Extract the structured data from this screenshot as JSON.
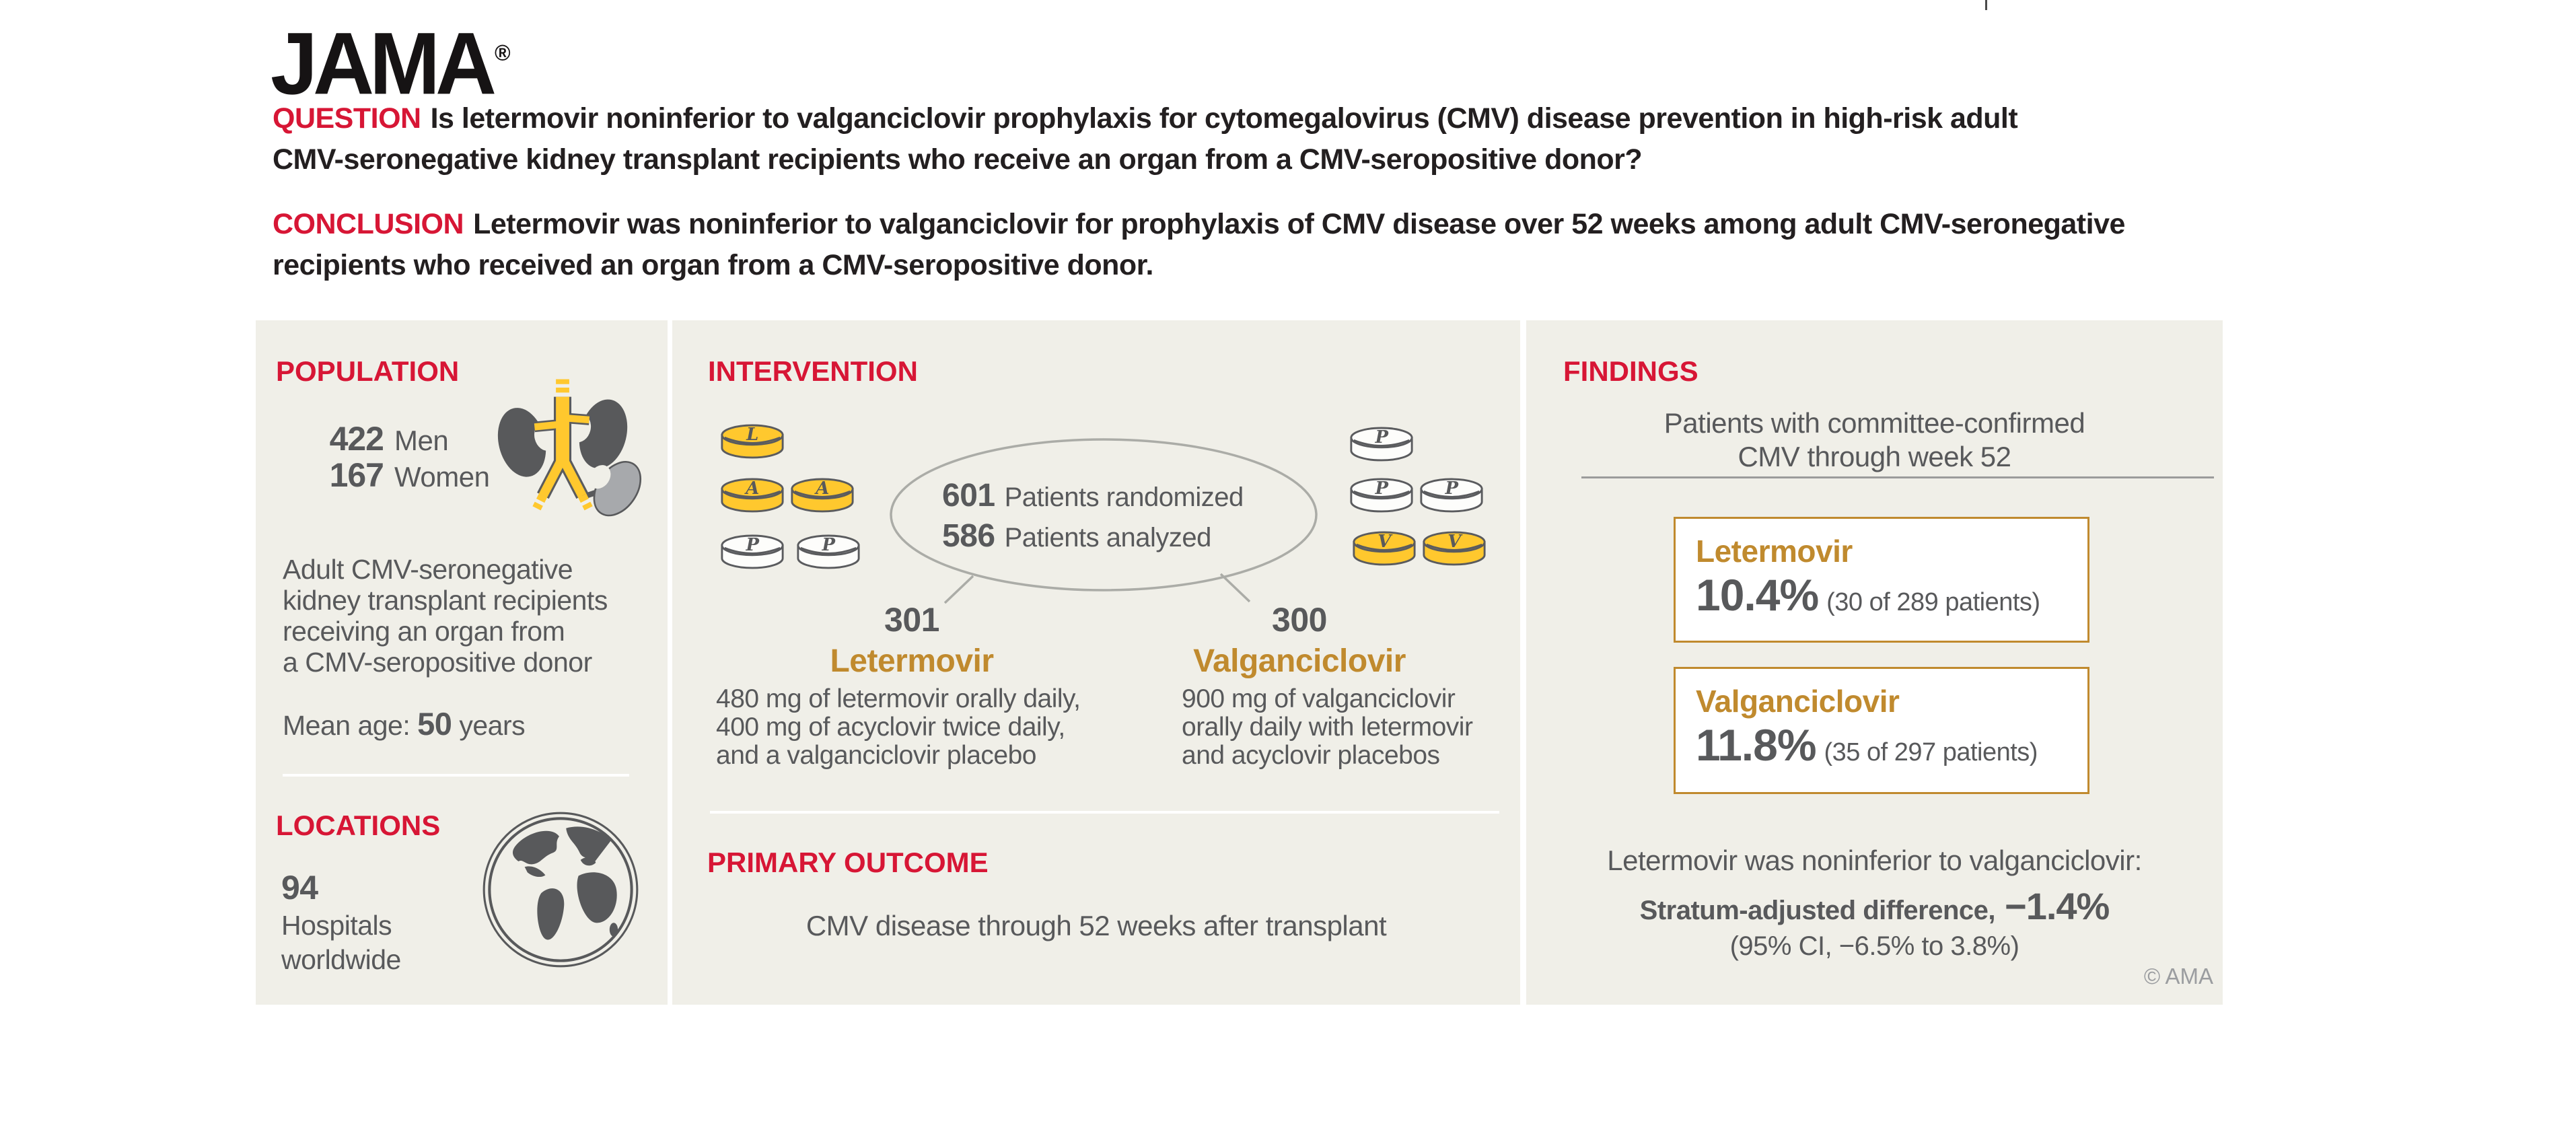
{
  "colors": {
    "accent_red": "#D71635",
    "accent_orange": "#C08A2E",
    "text_dark": "#231F20",
    "text_gray": "#58595B",
    "text_light_gray": "#9B9DA0",
    "panel_bg": "#F0EFE8",
    "pill_yellow": "#FFC82E",
    "pill_white": "#FDFDFB",
    "outline_gray": "#5A5B5E",
    "kidney_dark": "#58595B",
    "kidney_light": "#A7A9AC",
    "ellipse_gray": "#ABACA7",
    "divider_gray": "#9B9B9B"
  },
  "header": {
    "logo": "JAMA",
    "logo_reg": "®",
    "question_label": "QUESTION",
    "question_lines": [
      "Is letermovir noninferior to valganciclovir prophylaxis for cytomegalovirus (CMV) disease prevention in high-risk adult",
      "CMV-seronegative kidney transplant recipients who receive an organ from a CMV-seropositive donor?"
    ],
    "conclusion_label": "CONCLUSION",
    "conclusion_lines": [
      "Letermovir was noninferior to valganciclovir for prophylaxis of CMV disease over 52 weeks among adult CMV-seronegative",
      "recipients who received an organ from a CMV-seropositive donor."
    ]
  },
  "population": {
    "title": "POPULATION",
    "stats": [
      {
        "value": "422",
        "label": "Men"
      },
      {
        "value": "167",
        "label": "Women"
      }
    ],
    "description_lines": [
      "Adult CMV-seronegative",
      "kidney transplant recipients",
      "receiving an organ from",
      "a CMV-seropositive donor"
    ],
    "mean_age_label": "Mean age:",
    "mean_age_value": "50",
    "mean_age_unit": "years"
  },
  "locations": {
    "title": "LOCATIONS",
    "value": "94",
    "description_lines": [
      "Hospitals",
      "worldwide"
    ]
  },
  "intervention": {
    "title": "INTERVENTION",
    "pills_left": [
      "L",
      "A",
      "A",
      "P",
      "P"
    ],
    "pills_right": [
      "P",
      "P",
      "P",
      "V",
      "V"
    ],
    "randomized_value": "601",
    "randomized_label": "Patients randomized",
    "analyzed_value": "586",
    "analyzed_label": "Patients analyzed",
    "arms": [
      {
        "n": "301",
        "name": "Letermovir",
        "description_lines": [
          "480 mg of letermovir orally daily,",
          "400 mg of acyclovir twice daily,",
          "and a valganciclovir placebo"
        ]
      },
      {
        "n": "300",
        "name": "Valganciclovir",
        "description_lines": [
          "900 mg of valganciclovir",
          "orally daily with letermovir",
          "and acyclovir placebos"
        ]
      }
    ]
  },
  "primary_outcome": {
    "title": "PRIMARY OUTCOME",
    "text": "CMV disease through 52 weeks after transplant"
  },
  "findings": {
    "title": "FINDINGS",
    "subtitle_lines": [
      "Patients with committee-confirmed",
      "CMV through week 52"
    ],
    "results": [
      {
        "name": "Letermovir",
        "percent": "10.4%",
        "detail": "(30 of 289 patients)"
      },
      {
        "name": "Valganciclovir",
        "percent": "11.8%",
        "detail": "(35 of 297 patients)"
      }
    ],
    "noninferiority_text": "Letermovir was noninferior to valganciclovir:",
    "difference_label": "Stratum-adjusted difference,",
    "difference_value": "−1.4%",
    "ci_text": "(95% CI, −6.5% to 3.8%)",
    "copyright": "© AMA"
  }
}
